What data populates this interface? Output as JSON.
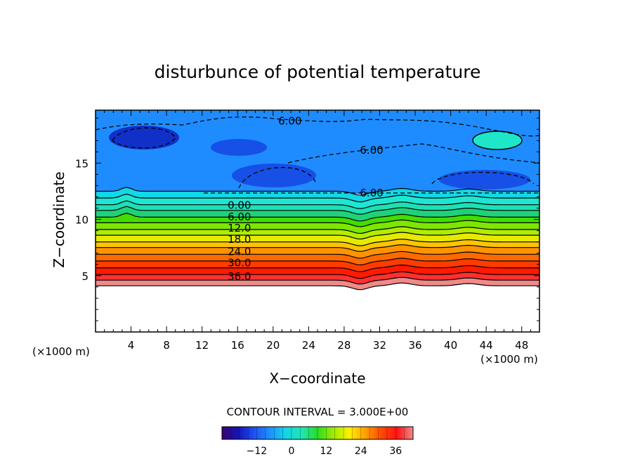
{
  "chart_data": {
    "type": "heatmap",
    "title": "disturbunce of potential temperature",
    "xlabel": "X−coordinate",
    "ylabel": "Z−coordinate",
    "x_unit_label": "(×1000 m)",
    "z_unit_label": "(×1000 m)",
    "xlim": [
      0,
      50
    ],
    "ylim": [
      0,
      19.7
    ],
    "x_ticks": [
      4,
      8,
      12,
      16,
      20,
      24,
      28,
      32,
      36,
      40,
      44,
      48
    ],
    "y_ticks": [
      5,
      10,
      15
    ],
    "contour_interval_label": "CONTOUR INTERVAL = 3.000E+00",
    "contour_interval": 3.0,
    "contour_labels": [
      {
        "text": "6.00",
        "x": 21.9,
        "y": 18.8
      },
      {
        "text": "6.00",
        "x": 31.1,
        "y": 16.2
      },
      {
        "text": "6.00",
        "x": 31.1,
        "y": 12.4
      },
      {
        "text": "0.00",
        "x": 16.2,
        "y": 11.3
      },
      {
        "text": "6.00",
        "x": 16.2,
        "y": 10.3
      },
      {
        "text": "12.0",
        "x": 16.2,
        "y": 9.3
      },
      {
        "text": "18.0",
        "x": 16.2,
        "y": 8.3
      },
      {
        "text": "24.0",
        "x": 16.2,
        "y": 7.2
      },
      {
        "text": "30.0",
        "x": 16.2,
        "y": 6.2
      },
      {
        "text": "36.0",
        "x": 16.2,
        "y": 5.0
      }
    ],
    "bands": [
      {
        "z_bottom": 4.1,
        "z_top": 4.6,
        "value": 40,
        "color": "#f08a8a"
      },
      {
        "z_bottom": 4.6,
        "z_top": 5.1,
        "value": 38,
        "color": "#ff3030"
      },
      {
        "z_bottom": 5.1,
        "z_top": 5.7,
        "value": 36,
        "color": "#ff1a00"
      },
      {
        "z_bottom": 5.7,
        "z_top": 6.3,
        "value": 33,
        "color": "#ff3c00"
      },
      {
        "z_bottom": 6.3,
        "z_top": 6.9,
        "value": 30,
        "color": "#ff6a00"
      },
      {
        "z_bottom": 6.9,
        "z_top": 7.5,
        "value": 27,
        "color": "#ff9400"
      },
      {
        "z_bottom": 7.5,
        "z_top": 8.0,
        "value": 24,
        "color": "#ffc400"
      },
      {
        "z_bottom": 8.0,
        "z_top": 8.6,
        "value": 21,
        "color": "#e6ea00"
      },
      {
        "z_bottom": 8.6,
        "z_top": 9.1,
        "value": 18,
        "color": "#b2ec00"
      },
      {
        "z_bottom": 9.1,
        "z_top": 9.7,
        "value": 15,
        "color": "#7ee600"
      },
      {
        "z_bottom": 9.7,
        "z_top": 10.2,
        "value": 12,
        "color": "#44dc00"
      },
      {
        "z_bottom": 10.2,
        "z_top": 10.8,
        "value": 9,
        "color": "#1ed27a"
      },
      {
        "z_bottom": 10.8,
        "z_top": 11.3,
        "value": 6,
        "color": "#1ee0b4"
      },
      {
        "z_bottom": 11.3,
        "z_top": 11.9,
        "value": 3,
        "color": "#1ee6d2"
      },
      {
        "z_bottom": 11.9,
        "z_top": 12.5,
        "value": 0,
        "color": "#12d8e6"
      }
    ],
    "upper_layer": {
      "z_bottom": 12.5,
      "z_top": 19.7,
      "value": -6,
      "color": "#1e8cff"
    },
    "colorbar": {
      "ticks": [
        -12,
        0,
        12,
        24,
        36
      ],
      "tick_labels": [
        "−12",
        "0",
        "12",
        "24",
        "36"
      ],
      "range": [
        -24,
        42
      ],
      "colors": [
        "#3c0070",
        "#1414b4",
        "#1e50f0",
        "#1e90ff",
        "#14d4e6",
        "#1ee6b4",
        "#28dc28",
        "#a0ec00",
        "#fff000",
        "#ffa000",
        "#ff4a00",
        "#ff1414",
        "#f08a8a"
      ]
    }
  }
}
